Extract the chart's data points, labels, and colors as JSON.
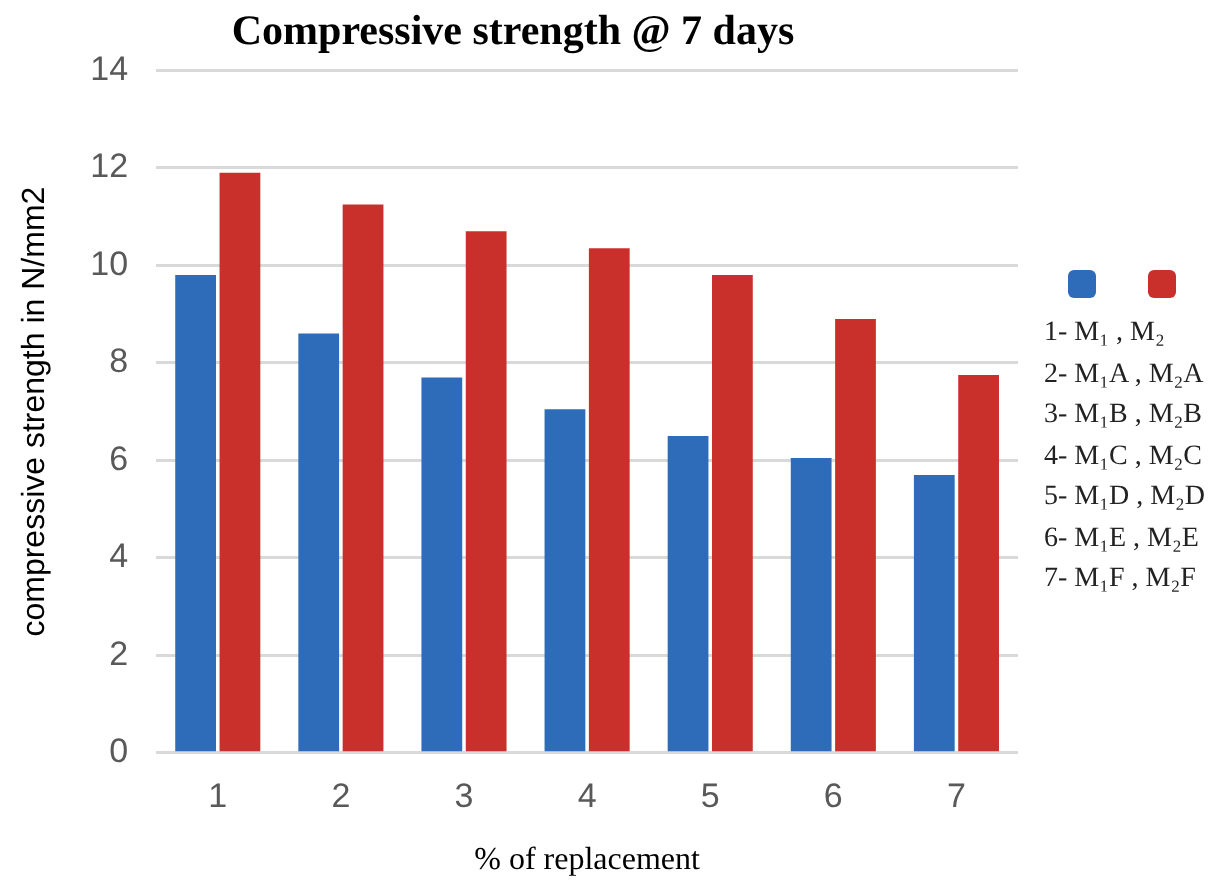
{
  "chart_data": {
    "type": "bar",
    "title": "Compressive strength @ 7 days",
    "xlabel": "% of replacement",
    "ylabel": "compressive strength in N/mm2",
    "categories": [
      "1",
      "2",
      "3",
      "4",
      "5",
      "6",
      "7"
    ],
    "series": [
      {
        "color": "#2e6bb8",
        "values": [
          9.8,
          8.6,
          7.7,
          7.05,
          6.5,
          6.05,
          5.7
        ]
      },
      {
        "color": "#c9302c",
        "values": [
          11.9,
          11.25,
          10.7,
          10.35,
          9.8,
          8.9,
          7.75
        ]
      }
    ],
    "ylim": [
      0,
      14
    ],
    "yticks": [
      0,
      2,
      4,
      6,
      8,
      10,
      12,
      14
    ],
    "grid": "y",
    "annotations": [
      "1-  M₁ , M₂",
      "2- M₁A , M₂A",
      "3- M₁B , M₂B",
      "4- M₁C , M₂C",
      "5- M₁D , M₂D",
      "6- M₁E , M₂E",
      "7- M₁F , M₂F"
    ]
  }
}
